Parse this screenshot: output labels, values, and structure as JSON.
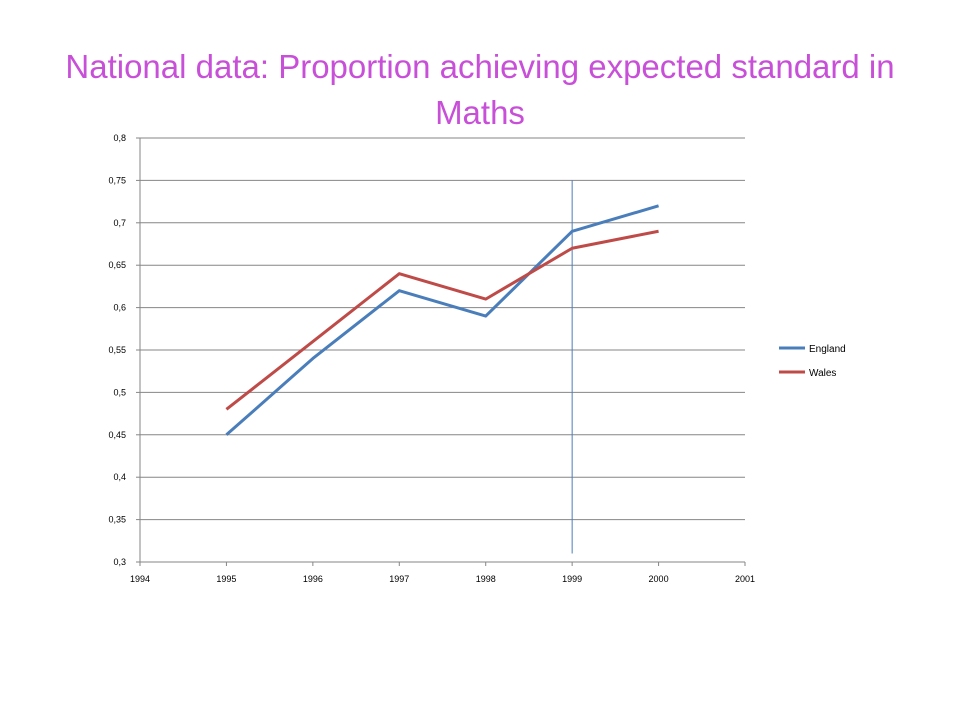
{
  "slide": {
    "title": "National data: Proportion achieving expected standard in Maths"
  },
  "chart_data": {
    "type": "line",
    "title": "",
    "xlabel": "",
    "ylabel": "",
    "xlim": [
      1994,
      2001
    ],
    "ylim": [
      0.3,
      0.8
    ],
    "x_ticks": [
      1994,
      1995,
      1996,
      1997,
      1998,
      1999,
      2000,
      2001
    ],
    "x_tick_labels": [
      "1994",
      "1995",
      "1996",
      "1997",
      "1998",
      "1999",
      "2000",
      "2001"
    ],
    "y_ticks": [
      0.3,
      0.35,
      0.4,
      0.45,
      0.5,
      0.55,
      0.6,
      0.65,
      0.7,
      0.75,
      0.8
    ],
    "y_tick_labels": [
      "0,3",
      "0,35",
      "0,4",
      "0,45",
      "0,5",
      "0,55",
      "0,6",
      "0,65",
      "0,7",
      "0,75",
      "0,8"
    ],
    "grid": "horizontal",
    "legend_position": "right",
    "x": [
      1995,
      1996,
      1997,
      1998,
      1999,
      2000
    ],
    "series": [
      {
        "name": "England",
        "color": "#4a7ebb",
        "values": [
          0.45,
          0.54,
          0.62,
          0.59,
          0.69,
          0.72
        ]
      },
      {
        "name": "Wales",
        "color": "#be4b48",
        "values": [
          0.48,
          0.56,
          0.64,
          0.61,
          0.67,
          0.69
        ]
      }
    ],
    "reference_line": {
      "x": 1999,
      "y_range": [
        0.31,
        0.75
      ],
      "color": "#4a7ebb"
    }
  }
}
